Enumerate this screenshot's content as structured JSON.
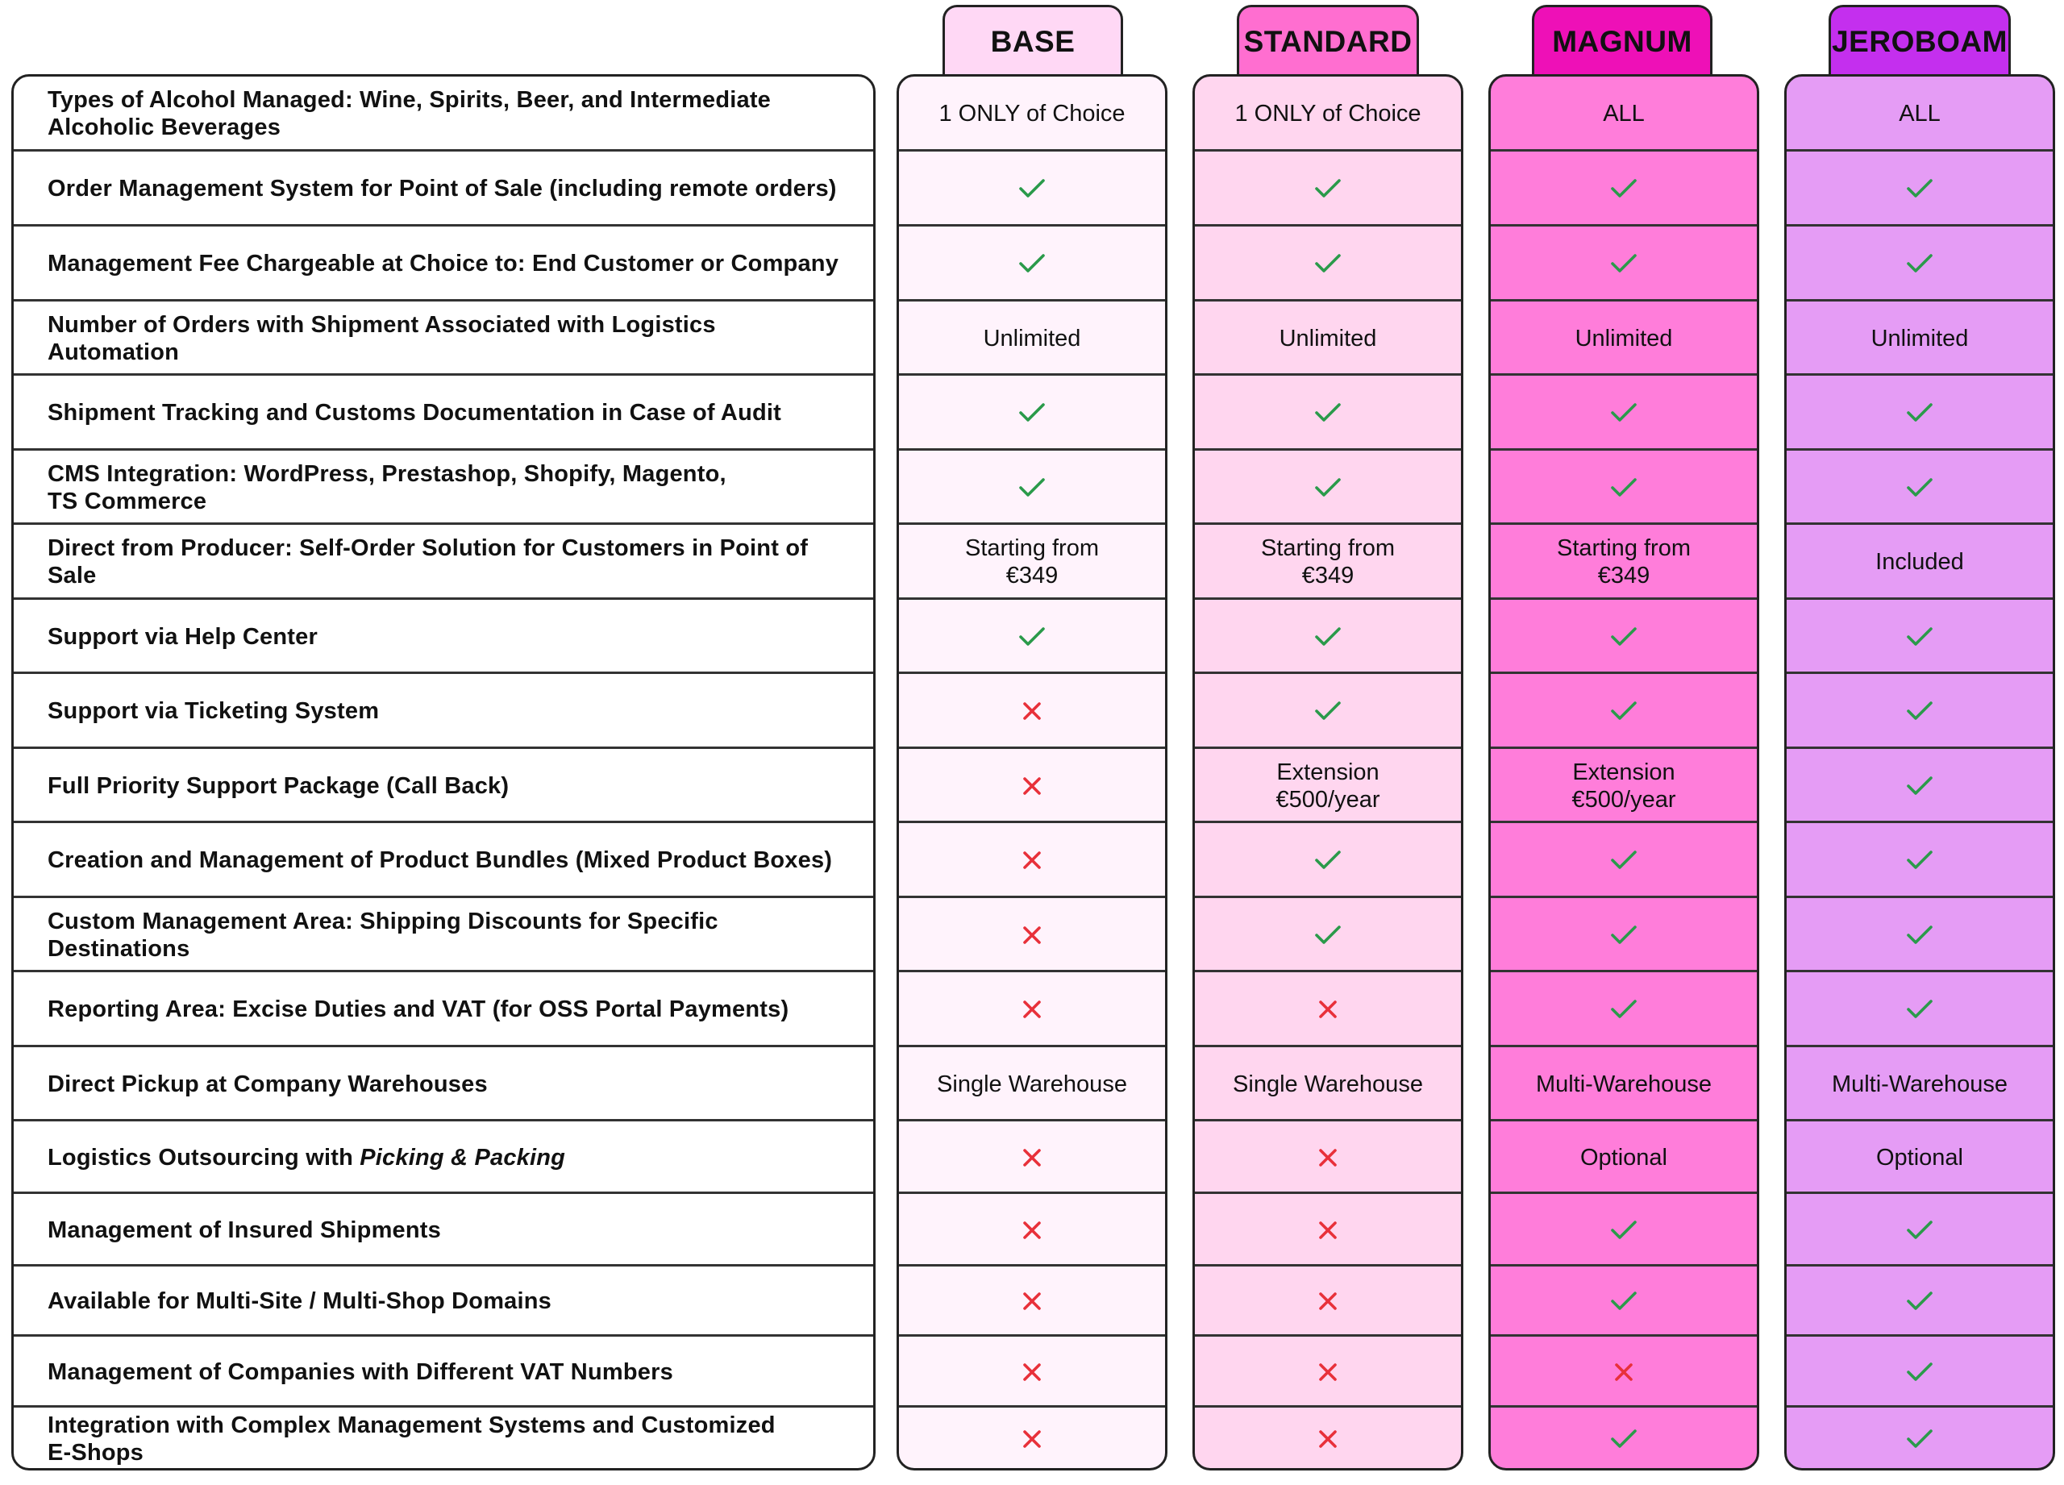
{
  "plans": [
    {
      "name": "BASE",
      "bg": "#fff3fc",
      "tab_bg": "#ffd8f5",
      "values": [
        {
          "t": "1 ONLY of Choice"
        },
        {
          "i": "check"
        },
        {
          "i": "check"
        },
        {
          "t": "Unlimited"
        },
        {
          "i": "check"
        },
        {
          "i": "check"
        },
        {
          "t": "Starting from\n€349"
        },
        {
          "i": "check"
        },
        {
          "i": "cross"
        },
        {
          "i": "cross"
        },
        {
          "i": "cross"
        },
        {
          "i": "cross"
        },
        {
          "i": "cross"
        },
        {
          "t": "Single Warehouse"
        },
        {
          "i": "cross"
        },
        {
          "i": "cross"
        },
        {
          "i": "cross"
        },
        {
          "i": "cross"
        },
        {
          "i": "cross"
        }
      ]
    },
    {
      "name": "STANDARD",
      "bg": "#ffd6ef",
      "tab_bg": "#ff6ed0",
      "values": [
        {
          "t": "1 ONLY of Choice"
        },
        {
          "i": "check"
        },
        {
          "i": "check"
        },
        {
          "t": "Unlimited"
        },
        {
          "i": "check"
        },
        {
          "i": "check"
        },
        {
          "t": "Starting from\n€349"
        },
        {
          "i": "check"
        },
        {
          "i": "check"
        },
        {
          "t": "Extension\n€500/year"
        },
        {
          "i": "check"
        },
        {
          "i": "check"
        },
        {
          "i": "cross"
        },
        {
          "t": "Single Warehouse"
        },
        {
          "i": "cross"
        },
        {
          "i": "cross"
        },
        {
          "i": "cross"
        },
        {
          "i": "cross"
        },
        {
          "i": "cross"
        }
      ]
    },
    {
      "name": "MAGNUM",
      "bg": "#ff7dda",
      "tab_bg": "#ee10b7",
      "values": [
        {
          "t": "ALL"
        },
        {
          "i": "check"
        },
        {
          "i": "check"
        },
        {
          "t": "Unlimited"
        },
        {
          "i": "check"
        },
        {
          "i": "check"
        },
        {
          "t": "Starting from\n€349"
        },
        {
          "i": "check"
        },
        {
          "i": "check"
        },
        {
          "t": "Extension\n€500/year"
        },
        {
          "i": "check"
        },
        {
          "i": "check"
        },
        {
          "i": "check"
        },
        {
          "t": "Multi-Warehouse"
        },
        {
          "t": "Optional"
        },
        {
          "i": "check"
        },
        {
          "i": "check"
        },
        {
          "i": "cross"
        },
        {
          "i": "check"
        }
      ]
    },
    {
      "name": "JEROBOAM",
      "bg": "#e59cf5",
      "tab_bg": "#c42fee",
      "values": [
        {
          "t": "ALL"
        },
        {
          "i": "check"
        },
        {
          "i": "check"
        },
        {
          "t": "Unlimited"
        },
        {
          "i": "check"
        },
        {
          "i": "check"
        },
        {
          "t": "Included"
        },
        {
          "i": "check"
        },
        {
          "i": "check"
        },
        {
          "i": "check"
        },
        {
          "i": "check"
        },
        {
          "i": "check"
        },
        {
          "i": "check"
        },
        {
          "t": "Multi-Warehouse"
        },
        {
          "t": "Optional"
        },
        {
          "i": "check"
        },
        {
          "i": "check"
        },
        {
          "i": "check"
        },
        {
          "i": "check"
        }
      ]
    }
  ],
  "features": [
    {
      "label": "Types of Alcohol Managed: Wine, Spirits, Beer, and Intermediate\nAlcoholic Beverages"
    },
    {
      "label": "Order Management System for Point of Sale (including remote orders)"
    },
    {
      "label": "Management Fee Chargeable at Choice to: End Customer or Company"
    },
    {
      "label": "Number of Orders with Shipment Associated with Logistics\nAutomation"
    },
    {
      "label": "Shipment Tracking and Customs Documentation in Case of Audit"
    },
    {
      "label": "CMS Integration: WordPress, Prestashop, Shopify, Magento,\nTS Commerce"
    },
    {
      "label": "Direct from Producer: Self-Order Solution for Customers in Point of Sale"
    },
    {
      "label": "Support via Help Center"
    },
    {
      "label": "Support via Ticketing System"
    },
    {
      "label": "Full Priority Support Package (Call Back)"
    },
    {
      "label": "Creation and Management of Product Bundles (Mixed Product Boxes)"
    },
    {
      "label": "Custom Management Area: Shipping Discounts for Specific\nDestinations"
    },
    {
      "label": "Reporting Area: Excise Duties and VAT (for OSS Portal Payments)"
    },
    {
      "label": "Direct Pickup at Company Warehouses"
    },
    {
      "label": "Logistics Outsourcing with ",
      "label_italic": "Picking & Packing"
    },
    {
      "label": "Management of Insured Shipments"
    },
    {
      "label": "Available for Multi-Site / Multi-Shop Domains"
    },
    {
      "label": "Management of Companies with Different VAT Numbers"
    },
    {
      "label": "Integration with Complex Management Systems and Customized\nE-Shops"
    }
  ],
  "colors": {
    "check": "#2a9a4a",
    "cross": "#e8303a",
    "border": "#222222"
  },
  "icons": {
    "check": "check-icon",
    "cross": "cross-icon"
  }
}
